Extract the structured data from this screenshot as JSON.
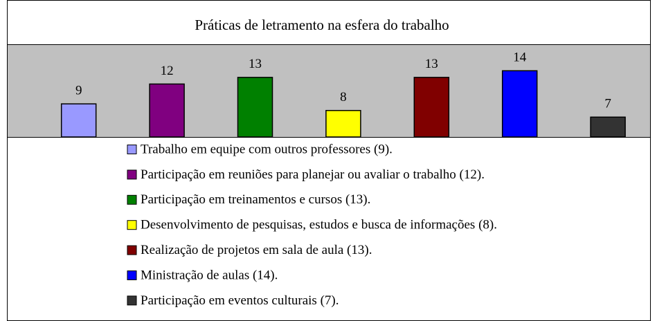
{
  "chart_data": {
    "type": "bar",
    "title": "Práticas de letramento na esfera do trabalho",
    "ylim": [
      4,
      18
    ],
    "series": [
      {
        "name": "Trabalho em equipe com outros professores (9).",
        "color": "#9999ff",
        "values": [
          9
        ]
      },
      {
        "name": "Participação em reuniões para planejar ou avaliar o trabalho (12).",
        "color": "#800080",
        "values": [
          12
        ]
      },
      {
        "name": "Participação em treinamentos e cursos (13).",
        "color": "#008000",
        "values": [
          13
        ]
      },
      {
        "name": "Desenvolvimento de pesquisas, estudos e busca de informações (8).",
        "color": "#ffff00",
        "values": [
          8
        ]
      },
      {
        "name": "Realização de projetos em sala de aula (13).",
        "color": "#800000",
        "values": [
          13
        ]
      },
      {
        "name": "Ministração de aulas (14).",
        "color": "#0000ff",
        "values": [
          14
        ]
      },
      {
        "name": "Participação em eventos culturais (7).",
        "color": "#333333",
        "values": [
          7
        ]
      }
    ]
  }
}
